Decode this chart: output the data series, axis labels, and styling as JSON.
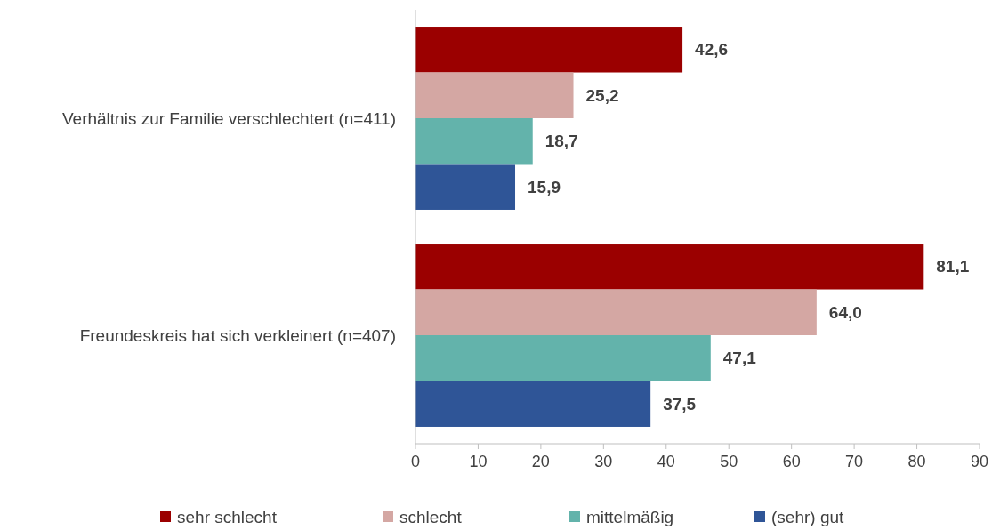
{
  "chart_data": {
    "type": "bar",
    "orientation": "horizontal",
    "categories": [
      "Verhältnis zur Familie verschlechtert (n=411)",
      "Freundeskreis hat sich verkleinert (n=407)"
    ],
    "series": [
      {
        "name": "sehr schlecht",
        "color": "#9b0000",
        "values": [
          42.6,
          81.1
        ],
        "value_labels": [
          "42,6",
          "81,1"
        ]
      },
      {
        "name": "schlecht",
        "color": "#d4a7a3",
        "values": [
          25.2,
          64.0
        ],
        "value_labels": [
          "25,2",
          "64,0"
        ]
      },
      {
        "name": "mittelmäßig",
        "color": "#63b3ab",
        "values": [
          18.7,
          47.1
        ],
        "value_labels": [
          "18,7",
          "47,1"
        ]
      },
      {
        "name": "(sehr) gut",
        "color": "#2f5597",
        "values": [
          15.9,
          37.5
        ],
        "value_labels": [
          "15,9",
          "37,5"
        ]
      }
    ],
    "xlim": [
      0,
      90
    ],
    "xticks": [
      0,
      10,
      20,
      30,
      40,
      50,
      60,
      70,
      80,
      90
    ],
    "grid": false,
    "legend": "bottom"
  }
}
